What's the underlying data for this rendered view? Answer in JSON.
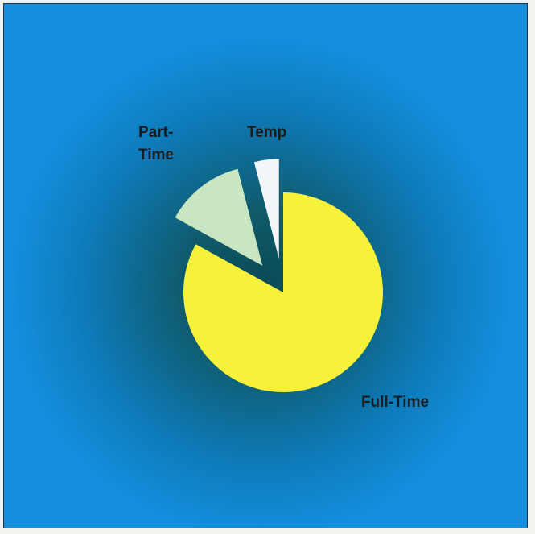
{
  "chart_data": {
    "type": "pie",
    "title": "",
    "categories": [
      "Full-Time",
      "Part-Time",
      "Temp"
    ],
    "values": [
      83,
      13,
      4
    ],
    "unit": "%",
    "exploded": [
      "Part-Time",
      "Temp"
    ],
    "legend": "none",
    "labels": {
      "full_time": "Full-Time",
      "part_time": [
        "Part-",
        "Time"
      ],
      "temp": "Temp"
    },
    "colors": {
      "Full-Time": "#f6f23a",
      "Part-Time": "#c9e6c2",
      "Temp": "#f2f6f8",
      "background": "#1390dc"
    }
  }
}
